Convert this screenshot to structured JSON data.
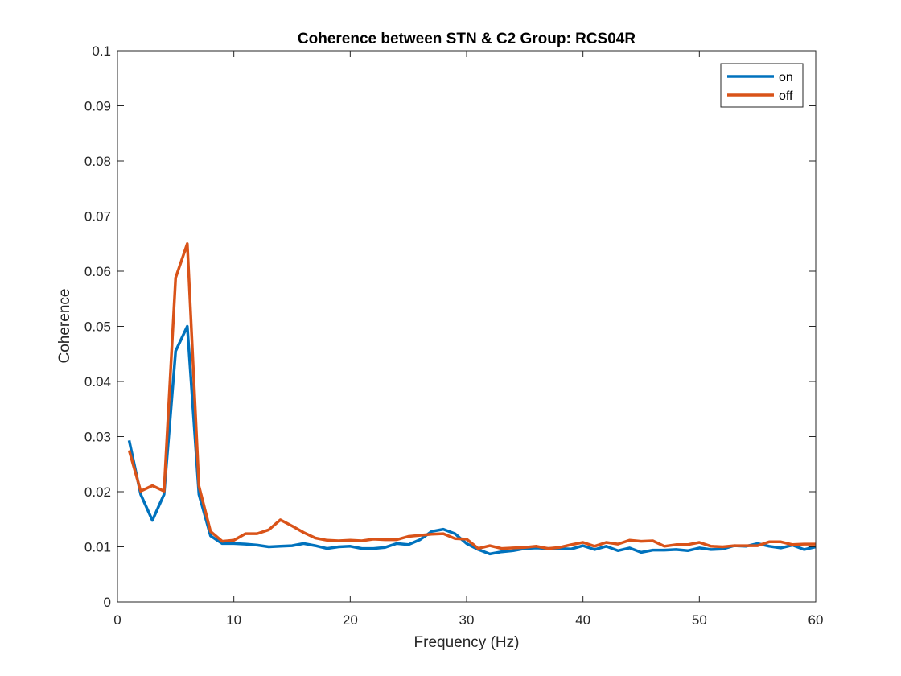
{
  "chart_data": {
    "type": "line",
    "title": "Coherence between STN & C2 Group: RCS04R",
    "xlabel": "Frequency (Hz)",
    "ylabel": "Coherence",
    "xlim": [
      0,
      60
    ],
    "ylim": [
      0,
      0.1
    ],
    "xticks": [
      "0",
      "10",
      "20",
      "30",
      "40",
      "50",
      "60"
    ],
    "yticks": [
      "0",
      "0.01",
      "0.02",
      "0.03",
      "0.04",
      "0.05",
      "0.06",
      "0.07",
      "0.08",
      "0.09",
      "0.1"
    ],
    "grid": false,
    "legend_position": "top-right",
    "x": [
      1,
      2,
      3,
      4,
      5,
      6,
      7,
      8,
      9,
      10,
      11,
      12,
      13,
      14,
      15,
      16,
      17,
      18,
      19,
      20,
      21,
      22,
      23,
      24,
      25,
      26,
      27,
      28,
      29,
      30,
      31,
      32,
      33,
      34,
      35,
      36,
      37,
      38,
      39,
      40,
      41,
      42,
      43,
      44,
      45,
      46,
      47,
      48,
      49,
      50,
      51,
      52,
      53,
      54,
      55,
      56,
      57,
      58,
      59,
      60
    ],
    "series": [
      {
        "name": "on",
        "color": "#0072BD",
        "values": [
          0.0293,
          0.0195,
          0.0148,
          0.0195,
          0.0455,
          0.05,
          0.0195,
          0.012,
          0.0106,
          0.0106,
          0.0105,
          0.0103,
          0.01,
          0.0101,
          0.0102,
          0.0106,
          0.0102,
          0.0097,
          0.01,
          0.0101,
          0.0097,
          0.0097,
          0.0099,
          0.0106,
          0.0104,
          0.0113,
          0.0128,
          0.0132,
          0.0124,
          0.0106,
          0.0095,
          0.0087,
          0.0091,
          0.0093,
          0.0097,
          0.0098,
          0.0097,
          0.0097,
          0.0096,
          0.0102,
          0.0095,
          0.0101,
          0.0093,
          0.0098,
          0.009,
          0.0094,
          0.0094,
          0.0095,
          0.0093,
          0.0098,
          0.0095,
          0.0096,
          0.0102,
          0.0101,
          0.0106,
          0.0101,
          0.0098,
          0.0103,
          0.0095,
          0.01
        ]
      },
      {
        "name": "off",
        "color": "#D95319",
        "values": [
          0.0275,
          0.0201,
          0.0211,
          0.0201,
          0.0588,
          0.065,
          0.021,
          0.0128,
          0.011,
          0.0112,
          0.0124,
          0.0124,
          0.0131,
          0.0149,
          0.0138,
          0.0126,
          0.0116,
          0.0112,
          0.0111,
          0.0112,
          0.0111,
          0.0114,
          0.0113,
          0.0113,
          0.0119,
          0.0121,
          0.0123,
          0.0124,
          0.0115,
          0.0114,
          0.0097,
          0.0102,
          0.0097,
          0.0098,
          0.0099,
          0.0101,
          0.0097,
          0.0099,
          0.0104,
          0.0108,
          0.0101,
          0.0108,
          0.0105,
          0.0112,
          0.011,
          0.0111,
          0.0101,
          0.0104,
          0.0104,
          0.0108,
          0.0101,
          0.01,
          0.0102,
          0.0102,
          0.0102,
          0.0109,
          0.0109,
          0.0104,
          0.0105,
          0.0105
        ]
      }
    ]
  }
}
